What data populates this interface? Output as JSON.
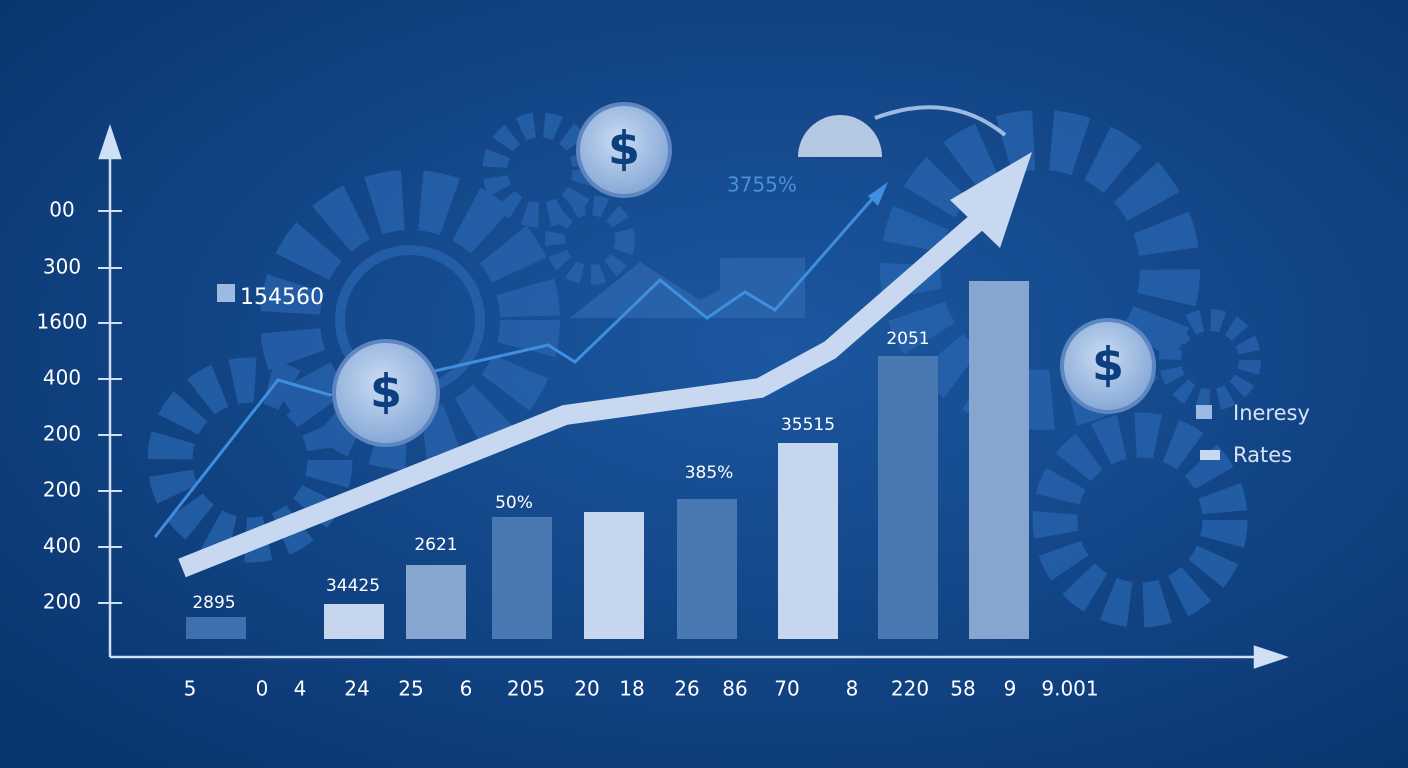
{
  "y_axis_labels": [
    "00",
    "300",
    "1600",
    "400",
    "200",
    "200",
    "400",
    "200"
  ],
  "x_axis_labels": [
    "5",
    "0",
    "4",
    "24",
    "25",
    "6",
    "205",
    "20",
    "18",
    "26",
    "86",
    "70",
    "8",
    "220",
    "58",
    "9",
    "9.001"
  ],
  "bar_labels": [
    "2895",
    "34425",
    "2621",
    "50%",
    "385%",
    "35515",
    "2051"
  ],
  "annotations": [
    "154560",
    "3755%"
  ],
  "legend": [
    "Ineresy",
    "Rates"
  ],
  "icons": [
    "$",
    "$",
    "$"
  ]
}
